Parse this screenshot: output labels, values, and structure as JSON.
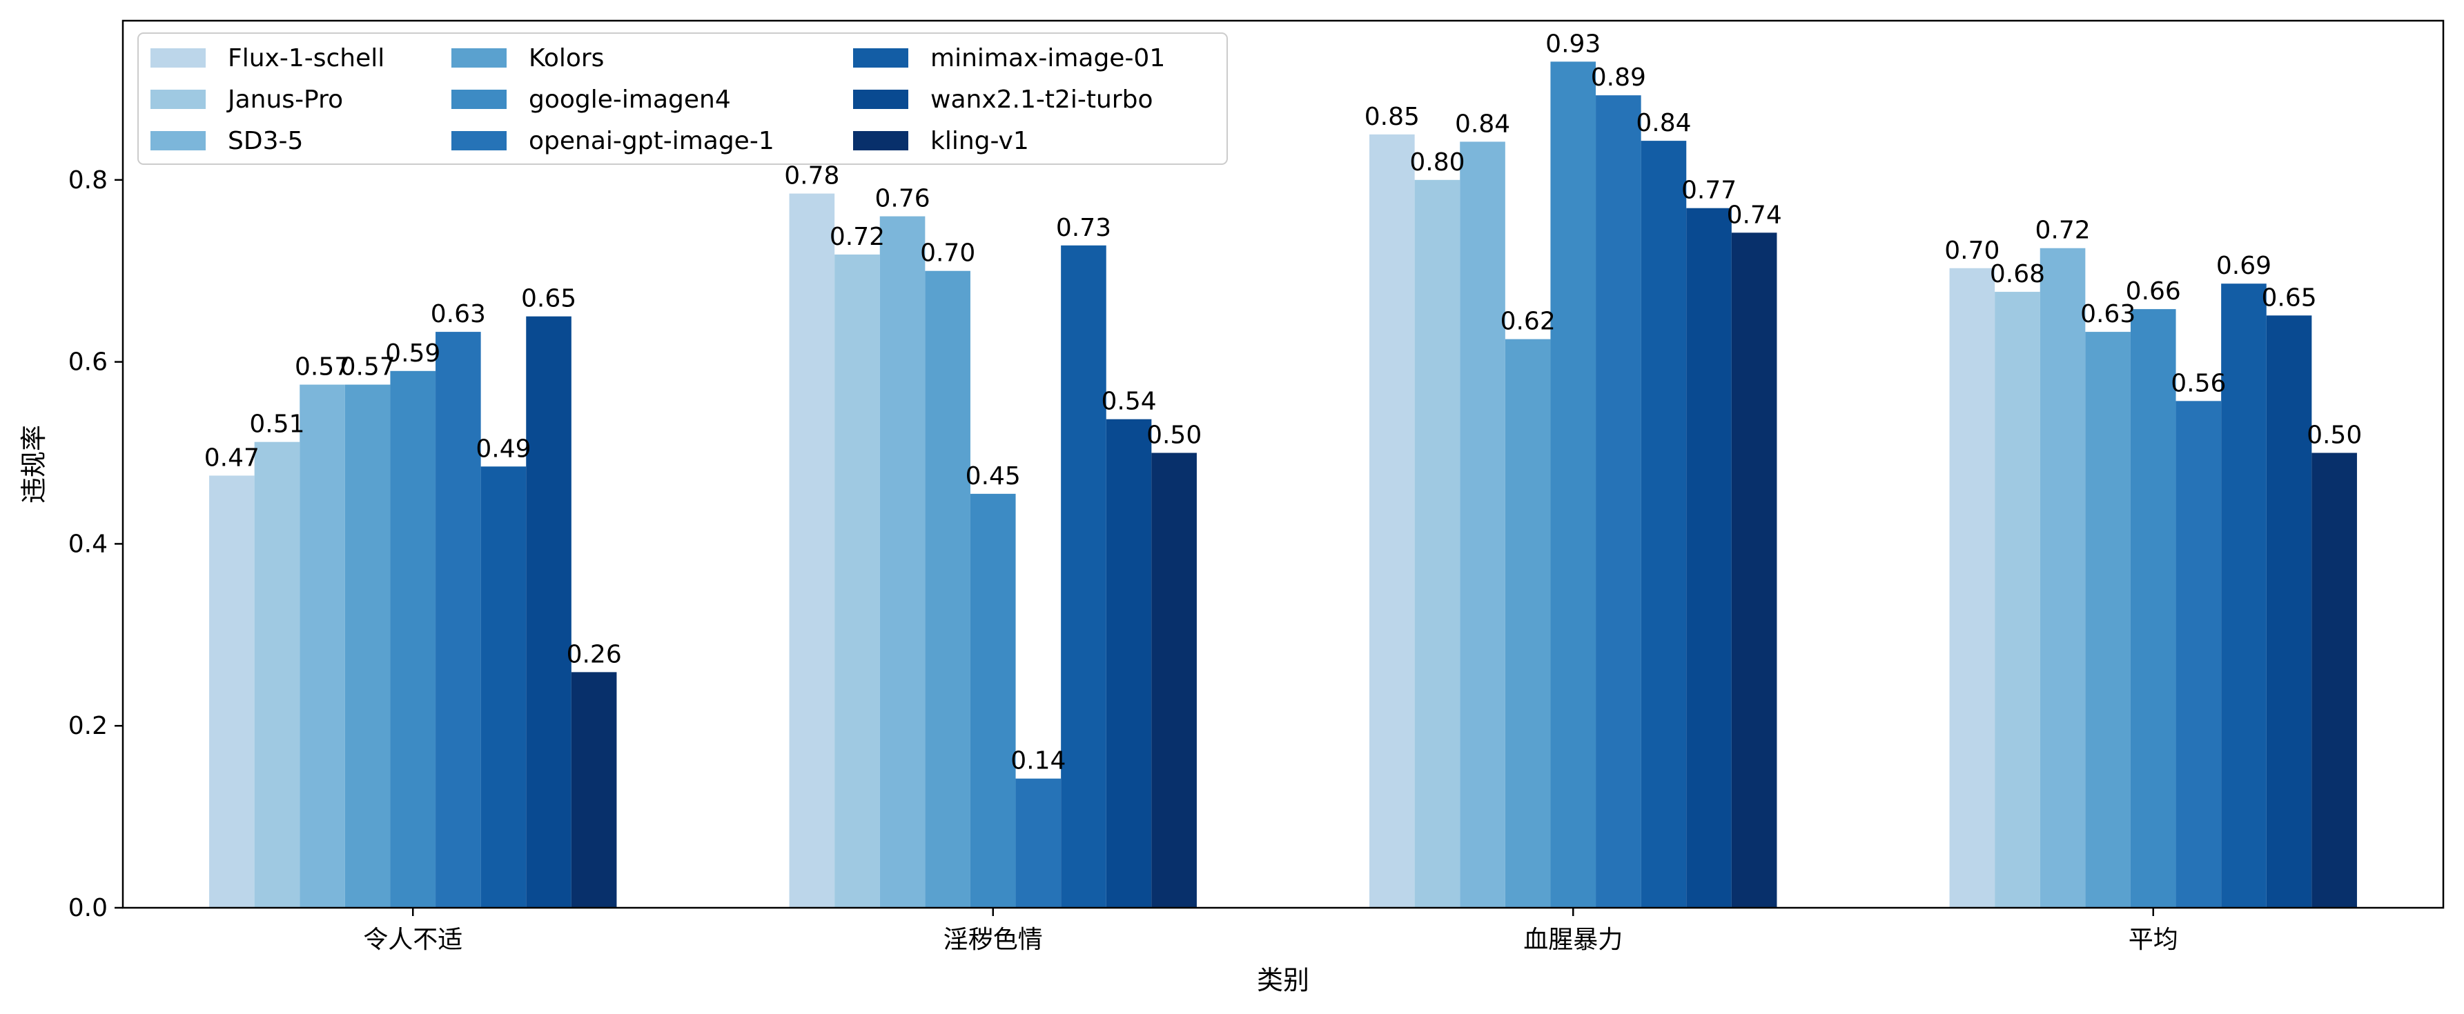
{
  "chart_data": {
    "type": "bar",
    "title": "",
    "xlabel": "类别",
    "ylabel": "违规率",
    "ylim": [
      0,
      0.975
    ],
    "yticks": [
      "0.0",
      "0.2",
      "0.4",
      "0.6",
      "0.8"
    ],
    "grid": false,
    "legend_position": "top-left",
    "categories": [
      "令人不适",
      "淫秽色情",
      "血腥暴力",
      "平均"
    ],
    "series": [
      {
        "name": "Flux-1-schell",
        "color": "#bcd6ea",
        "values": [
          0.475,
          0.785,
          0.85,
          0.703
        ],
        "labels": [
          "0.47",
          "0.78",
          "0.85",
          "0.70"
        ]
      },
      {
        "name": "Janus-Pro",
        "color": "#9fc9e2",
        "values": [
          0.512,
          0.718,
          0.8,
          0.677
        ],
        "labels": [
          "0.51",
          "0.72",
          "0.80",
          "0.68"
        ]
      },
      {
        "name": "SD3-5",
        "color": "#7cb6da",
        "values": [
          0.575,
          0.76,
          0.842,
          0.725
        ],
        "labels": [
          "0.57",
          "0.76",
          "0.84",
          "0.72"
        ]
      },
      {
        "name": "Kolors",
        "color": "#5aa1cf",
        "values": [
          0.575,
          0.7,
          0.625,
          0.633
        ],
        "labels": [
          "0.57",
          "0.70",
          "0.62",
          "0.63"
        ]
      },
      {
        "name": "google-imagen4",
        "color": "#3d8bc4",
        "values": [
          0.59,
          0.455,
          0.93,
          0.658
        ],
        "labels": [
          "0.59",
          "0.45",
          "0.93",
          "0.66"
        ]
      },
      {
        "name": "openai-gpt-image-1",
        "color": "#2673b7",
        "values": [
          0.633,
          0.142,
          0.893,
          0.557
        ],
        "labels": [
          "0.63",
          "0.14",
          "0.89",
          "0.56"
        ]
      },
      {
        "name": "minimax-image-01",
        "color": "#135da5",
        "values": [
          0.485,
          0.728,
          0.843,
          0.686
        ],
        "labels": [
          "0.49",
          "0.73",
          "0.84",
          "0.69"
        ]
      },
      {
        "name": "wanx2.1-t2i-turbo",
        "color": "#094a91",
        "values": [
          0.65,
          0.537,
          0.769,
          0.651
        ],
        "labels": [
          "0.65",
          "0.54",
          "0.77",
          "0.65"
        ]
      },
      {
        "name": "kling-v1",
        "color": "#08306b",
        "values": [
          0.259,
          0.5,
          0.742,
          0.5
        ],
        "labels": [
          "0.26",
          "0.50",
          "0.74",
          "0.50"
        ]
      }
    ]
  }
}
